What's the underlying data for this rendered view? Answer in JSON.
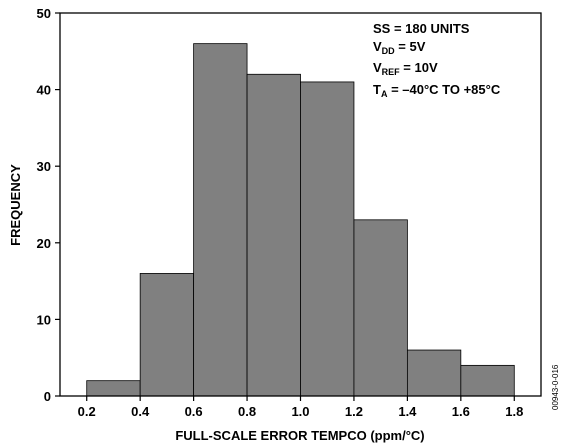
{
  "chart_data": {
    "type": "bar",
    "title": "",
    "xlabel": "FULL-SCALE ERROR TEMPCO (ppm/°C)",
    "ylabel": "FREQUENCY",
    "x_ticks": [
      "0.2",
      "0.4",
      "0.6",
      "0.8",
      "1.0",
      "1.2",
      "1.4",
      "1.6",
      "1.8"
    ],
    "y_ticks": [
      "0",
      "10",
      "20",
      "30",
      "40",
      "50"
    ],
    "xlim": [
      0.1,
      1.9
    ],
    "ylim": [
      0,
      50
    ],
    "bin_edges": [
      0.2,
      0.4,
      0.6,
      0.8,
      1.0,
      1.2,
      1.4,
      1.6,
      1.8
    ],
    "values": [
      2,
      16,
      46,
      42,
      41,
      23,
      6,
      4
    ],
    "grid": false,
    "bar_color": "#808080",
    "bar_edge_color": "#000000",
    "annotations": {
      "ss": "SS = 180 UNITS",
      "vdd_main": "V",
      "vdd_sub": "DD",
      "vdd_rest": " = 5V",
      "vref_main": "V",
      "vref_sub": "REF",
      "vref_rest": " = 10V",
      "ta_main": "T",
      "ta_sub": "A",
      "ta_rest": " = –40°C TO +85°C"
    },
    "figure_id": "00943-0-016"
  }
}
